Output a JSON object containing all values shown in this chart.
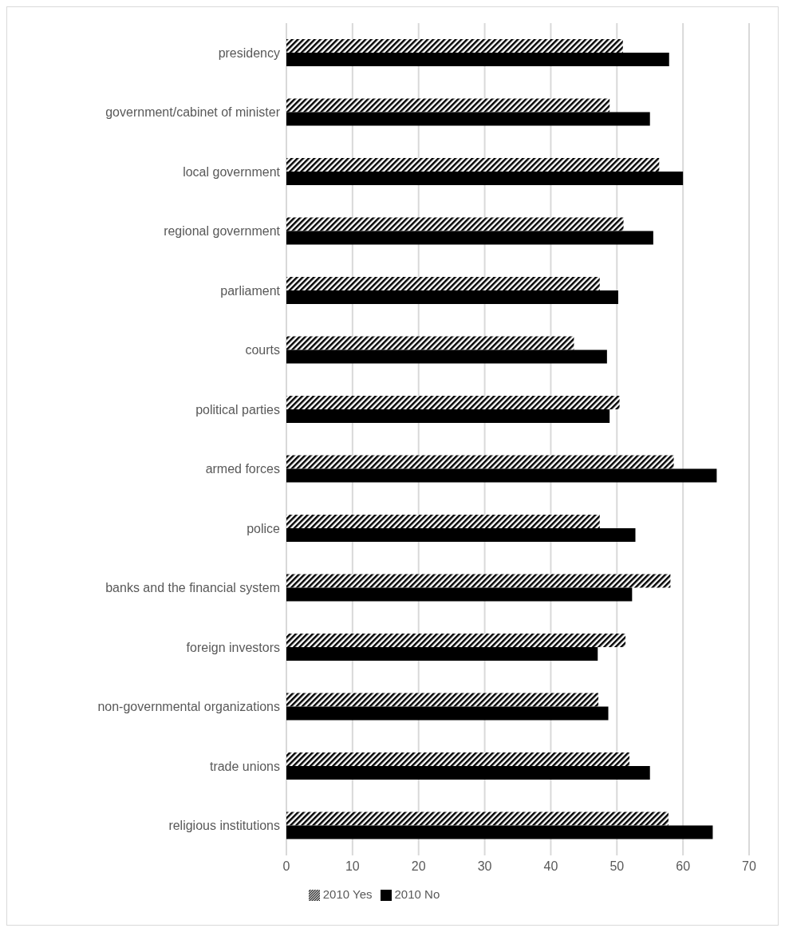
{
  "chart_data": {
    "type": "bar",
    "orientation": "horizontal",
    "categories": [
      "presidency",
      "government/cabinet of minister",
      "local government",
      "regional government",
      "parliament",
      "courts",
      "political parties",
      "armed forces",
      "police",
      "banks and the financial system",
      "foreign investors",
      "non-governmental organizations",
      "trade unions",
      "religious institutions"
    ],
    "series": [
      {
        "name": "2010 Yes",
        "color": "#000000",
        "values": [
          50.9,
          48.9,
          56.4,
          51.0,
          47.4,
          43.5,
          50.4,
          58.6,
          47.4,
          58.1,
          51.3,
          47.2,
          51.9,
          57.8
        ]
      },
      {
        "name": "2010 No",
        "color": "#000000",
        "values": [
          57.9,
          55.0,
          60.0,
          55.5,
          50.2,
          48.5,
          48.9,
          65.1,
          52.8,
          52.3,
          47.1,
          48.7,
          55.0,
          64.5
        ]
      }
    ],
    "xlim": [
      0,
      70
    ],
    "xticks": [
      0,
      10,
      20,
      30,
      40,
      50,
      60,
      70
    ],
    "grid": "x",
    "legend": "bottom"
  }
}
